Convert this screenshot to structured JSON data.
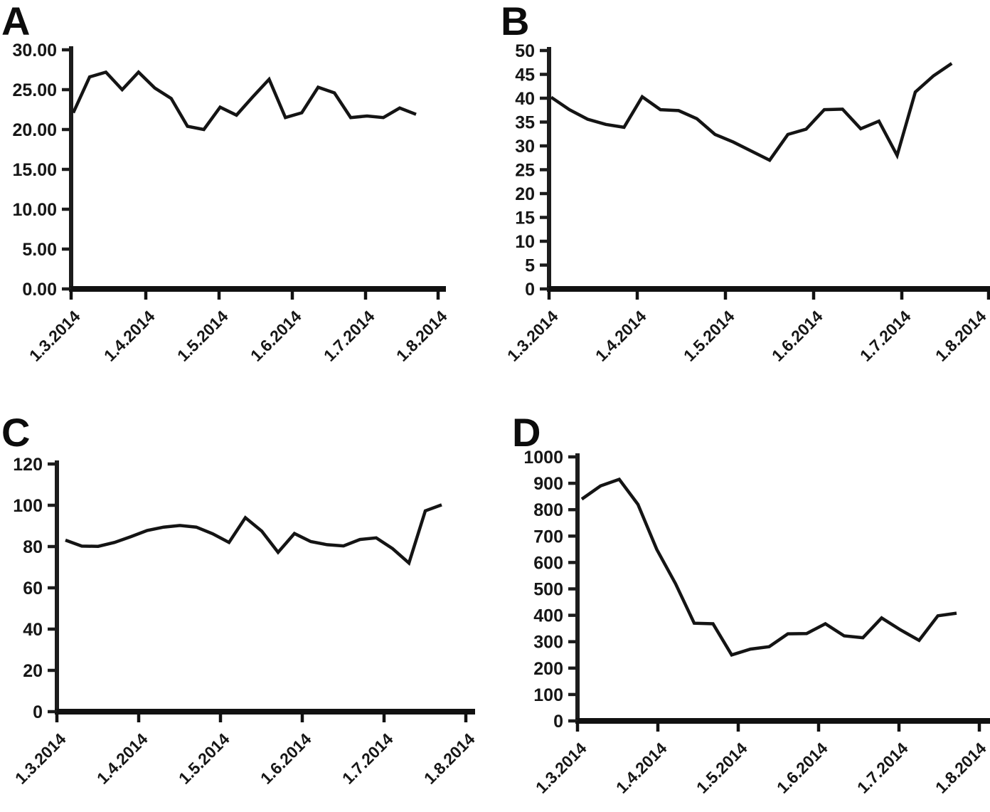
{
  "figure": {
    "type": "four-panel line figure",
    "background": "#ffffff",
    "line_color": "#141414",
    "axis_color": "#1c1c1c",
    "text_color": "#161616"
  },
  "chart_data": [
    {
      "type": "line",
      "panel": "A",
      "title": "",
      "xlabel": "",
      "ylabel": "",
      "ylim": [
        0,
        30
      ],
      "grid": false,
      "legend": "none",
      "y_tick_labels": [
        "30.00",
        "25.00",
        "20.00",
        "15.00",
        "10.00",
        "5.00",
        "0.00"
      ],
      "x_tick_labels": [
        "1.3.2014",
        "1.4.2014",
        "1.5.2014",
        "1.6.2014",
        "1.7.2014",
        "1.8.2014"
      ],
      "values": [
        22.1,
        26.6,
        27.2,
        25.0,
        27.2,
        25.2,
        23.9,
        20.4,
        20.0,
        22.8,
        21.8,
        24.1,
        26.3,
        21.5,
        22.1,
        25.3,
        24.6,
        21.5,
        21.7,
        21.5,
        22.7,
        21.9
      ]
    },
    {
      "type": "line",
      "panel": "B",
      "title": "",
      "xlabel": "",
      "ylabel": "",
      "ylim": [
        0,
        50
      ],
      "grid": false,
      "legend": "none",
      "y_tick_labels": [
        "50",
        "45",
        "40",
        "35",
        "30",
        "25",
        "20",
        "15",
        "10",
        "5",
        "0"
      ],
      "x_tick_labels": [
        "1.3.2014",
        "1.4.2014",
        "1.5.2014",
        "1.6.2014",
        "1.7.2014",
        "1.8.2014"
      ],
      "values": [
        40.2,
        37.6,
        35.6,
        34.5,
        33.9,
        40.3,
        37.6,
        37.4,
        35.7,
        32.4,
        30.8,
        28.9,
        27.0,
        32.4,
        33.5,
        37.6,
        37.7,
        33.6,
        35.2,
        28.0,
        41.3,
        44.7,
        47.3
      ]
    },
    {
      "type": "line",
      "panel": "C",
      "title": "",
      "xlabel": "",
      "ylabel": "",
      "ylim": [
        0,
        120
      ],
      "grid": false,
      "legend": "none",
      "y_tick_labels": [
        "120",
        "100",
        "80",
        "60",
        "40",
        "20",
        "0"
      ],
      "x_tick_labels": [
        "1.3.2014",
        "1.4.2014",
        "1.5.2014",
        "1.6.2014",
        "1.7.2014",
        "1.8.2014"
      ],
      "values": [
        83.1,
        80.2,
        80.1,
        82.0,
        84.8,
        87.8,
        89.4,
        90.2,
        89.4,
        86.2,
        82.0,
        94.0,
        87.5,
        77.2,
        86.3,
        82.4,
        80.9,
        80.3,
        83.4,
        84.2,
        79.0,
        72.0,
        97.3,
        100.2
      ]
    },
    {
      "type": "line",
      "panel": "D",
      "title": "",
      "xlabel": "",
      "ylabel": "",
      "ylim": [
        0,
        1000
      ],
      "grid": false,
      "legend": "none",
      "y_tick_labels": [
        "1000",
        "900",
        "800",
        "700",
        "600",
        "500",
        "400",
        "300",
        "200",
        "100",
        "0"
      ],
      "x_tick_labels": [
        "1.3.2014",
        "1.4.2014",
        "1.5.2014",
        "1.6.2014",
        "1.7.2014",
        "1.8.2014"
      ],
      "values": [
        840,
        890,
        915,
        820,
        650,
        520,
        370,
        368,
        250,
        272,
        281,
        330,
        331,
        368,
        322,
        315,
        390,
        345,
        305,
        398,
        408
      ]
    }
  ]
}
